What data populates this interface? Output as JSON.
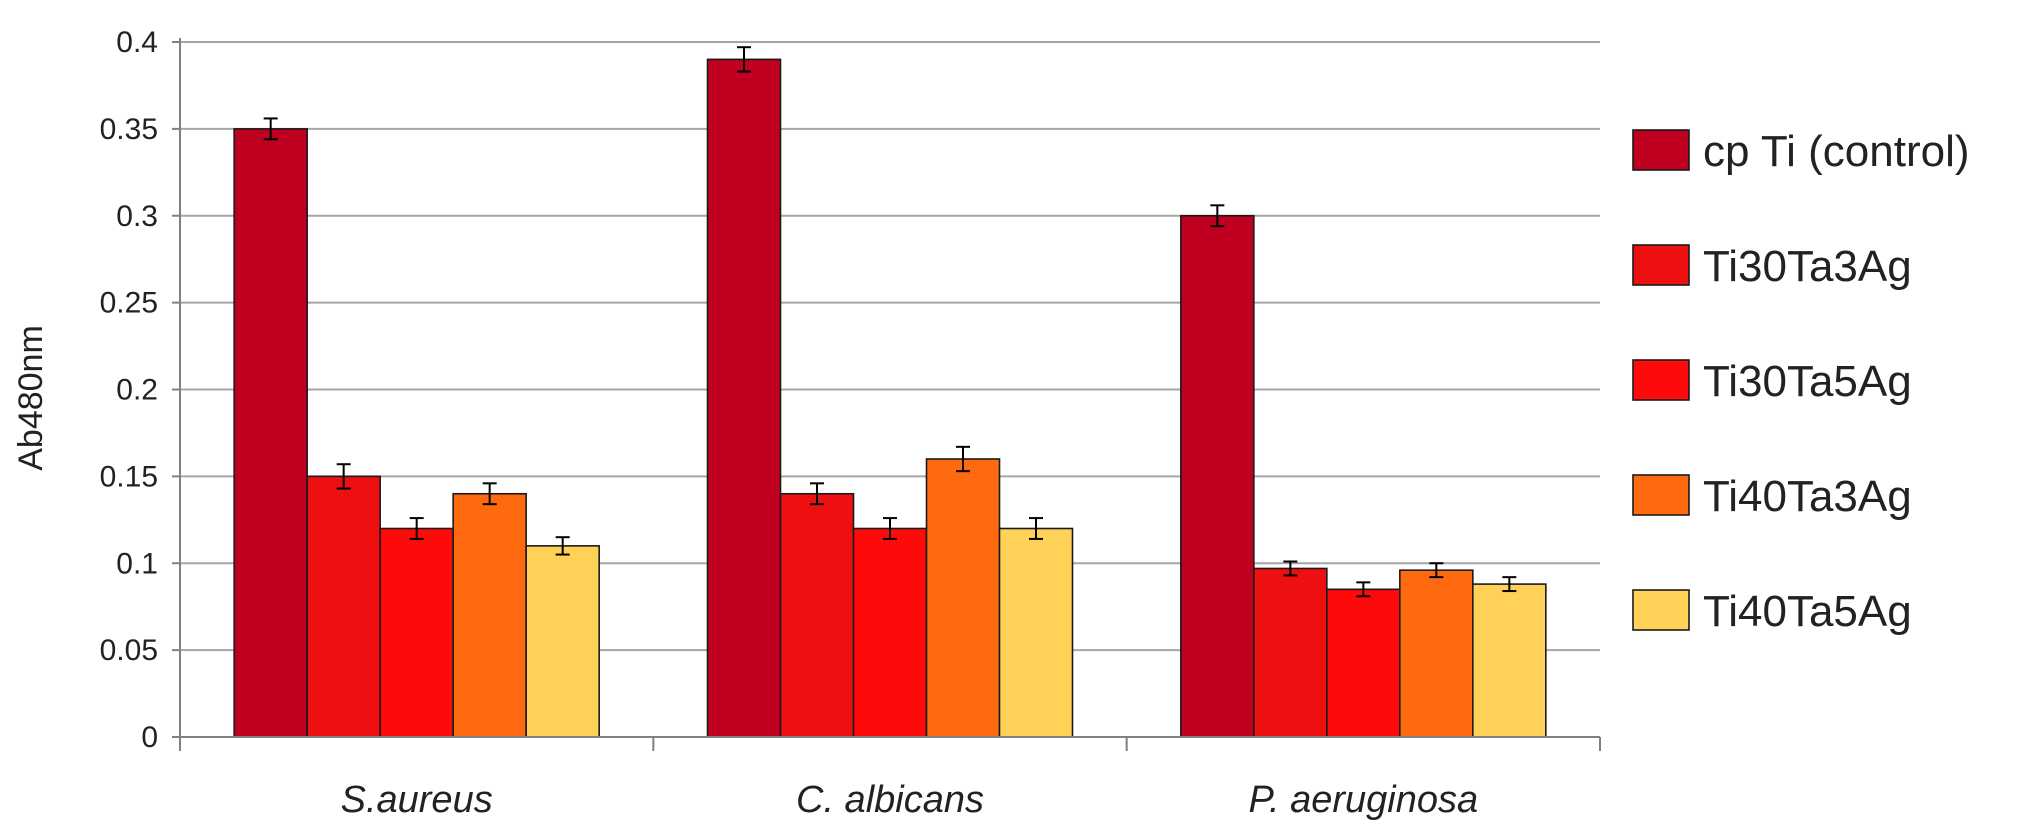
{
  "chart_data": {
    "type": "bar",
    "title": "",
    "xlabel": "",
    "ylabel": "Ab480nm",
    "ylim": [
      0,
      0.4
    ],
    "yticks": [
      "0",
      "0.05",
      "0.1",
      "0.15",
      "0.2",
      "0.25",
      "0.3",
      "0.35",
      "0.4"
    ],
    "categories": [
      "S.aureus",
      "C. albicans",
      "P. aeruginosa"
    ],
    "series": [
      {
        "name": "cp Ti (control)",
        "color": "#C00020",
        "values": [
          0.35,
          0.39,
          0.3
        ],
        "errors": [
          0.006,
          0.007,
          0.006
        ]
      },
      {
        "name": "Ti30Ta3Ag",
        "color": "#EE1010",
        "values": [
          0.15,
          0.14,
          0.097
        ],
        "errors": [
          0.007,
          0.006,
          0.004
        ]
      },
      {
        "name": "Ti30Ta5Ag",
        "color": "#FF0A0A",
        "values": [
          0.12,
          0.12,
          0.085
        ],
        "errors": [
          0.006,
          0.006,
          0.004
        ]
      },
      {
        "name": "Ti40Ta3Ag",
        "color": "#FF6A10",
        "values": [
          0.14,
          0.16,
          0.096
        ],
        "errors": [
          0.006,
          0.007,
          0.004
        ]
      },
      {
        "name": "Ti40Ta5Ag",
        "color": "#FFD257",
        "values": [
          0.11,
          0.12,
          0.088
        ],
        "errors": [
          0.005,
          0.006,
          0.004
        ]
      }
    ],
    "grid": true,
    "legend_position": "right"
  }
}
